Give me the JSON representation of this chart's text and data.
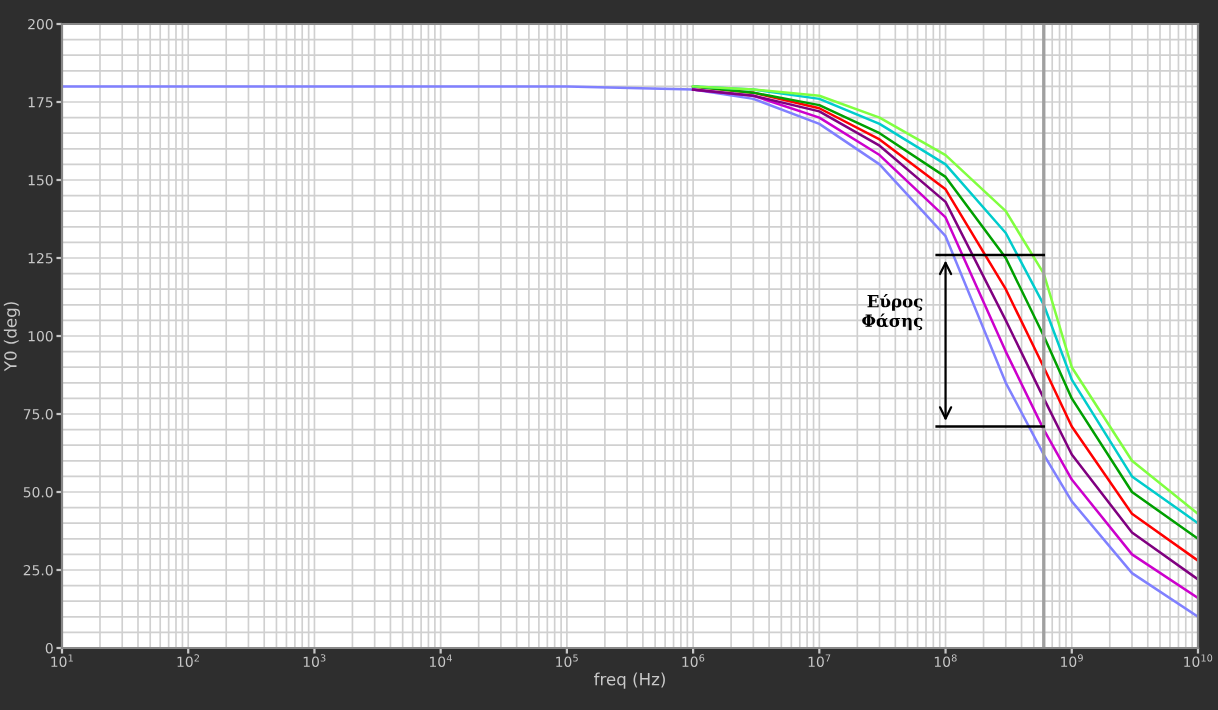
{
  "chart_data": {
    "type": "line",
    "xlabel": "freq (Hz)",
    "ylabel": "Y0 (deg)",
    "log": "x",
    "xlim": [
      10,
      10000000000
    ],
    "ylim": [
      0,
      200
    ],
    "xticks": [
      {
        "value": 10,
        "label": "10$^{1}$"
      },
      {
        "value": 100,
        "label": "10$^{2}$"
      },
      {
        "value": 1000,
        "label": "10$^{3}$"
      },
      {
        "value": 10000,
        "label": "10$^{4}$"
      },
      {
        "value": 100000,
        "label": "10$^{5}$"
      },
      {
        "value": 1000000,
        "label": "10$^{6}$"
      },
      {
        "value": 10000000,
        "label": "10$^{7}$"
      },
      {
        "value": 100000000,
        "label": "10$^{8}$"
      },
      {
        "value": 1000000000,
        "label": "10$^{9}$"
      },
      {
        "value": 10000000000,
        "label": "10$^{10}$"
      }
    ],
    "yticks": [
      0,
      {
        "value": 25,
        "label": "25.0"
      },
      {
        "value": 50,
        "label": "50.0"
      },
      {
        "value": 75,
        "label": "75.0"
      },
      100,
      125,
      150,
      175,
      200
    ],
    "grid": true,
    "marker": "none",
    "line_style": "solid",
    "x": [
      10,
      100000,
      1000000,
      3000000,
      10000000,
      30000000,
      100000000,
      300000000,
      600000000,
      1000000000,
      3000000000,
      10000000000
    ],
    "series": [
      {
        "color": "#8080ff",
        "values": [
          180,
          180,
          179,
          176,
          168,
          155,
          132,
          85,
          62,
          47,
          24,
          10
        ]
      },
      {
        "color": "#cc00cc",
        "values": [
          null,
          null,
          179,
          177,
          170,
          158,
          138,
          95,
          70,
          54,
          30,
          16
        ]
      },
      {
        "color": "#800080",
        "values": [
          null,
          null,
          179,
          177,
          172,
          161,
          143,
          105,
          80,
          62,
          37,
          22
        ]
      },
      {
        "color": "#ff0000",
        "values": [
          null,
          null,
          180,
          178,
          173,
          163,
          147,
          115,
          90,
          71,
          43,
          28
        ]
      },
      {
        "color": "#00a000",
        "values": [
          null,
          null,
          180,
          178,
          174,
          165,
          151,
          125,
          100,
          80,
          50,
          35
        ]
      },
      {
        "color": "#00cccc",
        "values": [
          null,
          null,
          180,
          179,
          176,
          168,
          155,
          133,
          110,
          86,
          55,
          40
        ]
      },
      {
        "color": "#80ff40",
        "values": [
          null,
          null,
          180,
          179,
          177,
          170,
          158,
          140,
          120,
          90,
          60,
          43
        ]
      }
    ],
    "ref_lines": [
      {
        "axis": "x",
        "value": 600000000,
        "color": "#a0a0a0"
      },
      {
        "axis": "y",
        "value": 126,
        "color": "#000000"
      },
      {
        "axis": "y",
        "value": 71,
        "color": "#000000"
      }
    ],
    "annotations": [
      "Εύρος\nΦάσης"
    ]
  }
}
